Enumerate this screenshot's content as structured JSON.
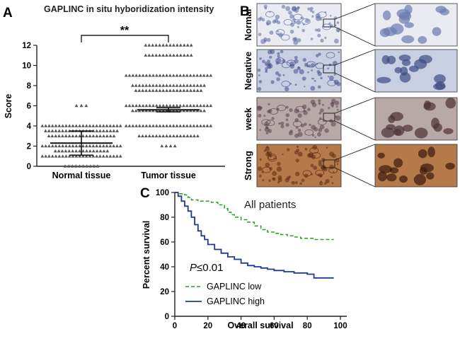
{
  "panels": {
    "a": {
      "label": "A"
    },
    "b": {
      "label": "B"
    },
    "c": {
      "label": "C"
    }
  },
  "colors": {
    "axis": "#222222",
    "marker": "#555555",
    "low": "#2ca02c",
    "high": "#1f3b8f",
    "tissue_bg": "#d9dce8"
  },
  "micrographs": {
    "rows": [
      {
        "label": "Normal",
        "stain": "#e9eaf2",
        "cell": "#5a6aa0",
        "zoom_cell": "#6b7bb0"
      },
      {
        "label": "Negative",
        "stain": "#c8cfe3",
        "cell": "#3f4f8c",
        "zoom_cell": "#3d4b85"
      },
      {
        "label": "week",
        "stain": "#b9a8a8",
        "cell": "#5a3f4f",
        "zoom_cell": "#4d3038"
      },
      {
        "label": "Strong",
        "stain": "#b57a4a",
        "cell": "#5a2a12",
        "zoom_cell": "#3a1a0e"
      }
    ]
  },
  "chart_data": [
    {
      "type": "scatter",
      "title": "GAPLINC in situ hyboridization intensity",
      "xlabel": "",
      "ylabel": "Score",
      "categories": [
        "Normal tissue",
        "Tumor tissue"
      ],
      "ylim": [
        0,
        12
      ],
      "yticks": [
        0,
        2,
        4,
        6,
        8,
        10,
        12
      ],
      "significance": "**",
      "series": [
        {
          "name": "Normal tissue",
          "points": [
            {
              "y": 6,
              "n": 3
            },
            {
              "y": 4,
              "n": 24
            },
            {
              "y": 3.5,
              "n": 22
            },
            {
              "y": 3,
              "n": 20
            },
            {
              "y": 2,
              "n": 24
            },
            {
              "y": 1.5,
              "n": 16
            },
            {
              "y": 1,
              "n": 24
            },
            {
              "y": 0,
              "n": 10
            }
          ],
          "mean": 2.3,
          "sd_low": 1.1,
          "sd_high": 3.5
        },
        {
          "name": "Tumor tissue",
          "points": [
            {
              "y": 12,
              "n": 14
            },
            {
              "y": 11,
              "n": 14
            },
            {
              "y": 9,
              "n": 26
            },
            {
              "y": 8,
              "n": 22
            },
            {
              "y": 7.5,
              "n": 20
            },
            {
              "y": 6,
              "n": 26
            },
            {
              "y": 5.5,
              "n": 22
            },
            {
              "y": 4,
              "n": 26
            },
            {
              "y": 3,
              "n": 18
            },
            {
              "y": 2,
              "n": 4
            }
          ],
          "mean": 5.6,
          "sd_low": 5.4,
          "sd_high": 5.8
        }
      ]
    },
    {
      "type": "line",
      "title": "All patients",
      "xlabel": "Overall survival",
      "ylabel": "Percent survival",
      "xlim": [
        0,
        100
      ],
      "ylim": [
        0,
        100
      ],
      "xticks": [
        0,
        20,
        40,
        60,
        80,
        100
      ],
      "yticks": [
        0,
        20,
        40,
        60,
        80,
        100
      ],
      "annotation_p": "P",
      "annotation_rest": "≤0.01",
      "series": [
        {
          "name": "GAPLINC low",
          "style": "dashed",
          "x": [
            0,
            3,
            6,
            8,
            10,
            14,
            18,
            22,
            26,
            30,
            32,
            34,
            36,
            40,
            44,
            48,
            52,
            56,
            60,
            64,
            68,
            72,
            76,
            80,
            84,
            96
          ],
          "y": [
            100,
            99,
            98,
            96,
            94,
            93,
            93,
            92,
            90,
            87,
            84,
            82,
            80,
            78,
            76,
            73,
            70,
            68,
            67,
            66,
            65,
            64,
            63,
            63,
            62,
            62
          ]
        },
        {
          "name": "GAPLINC high",
          "style": "solid",
          "x": [
            0,
            2,
            4,
            6,
            8,
            10,
            12,
            14,
            16,
            18,
            20,
            24,
            28,
            32,
            36,
            40,
            44,
            48,
            52,
            56,
            60,
            66,
            72,
            80,
            84,
            96
          ],
          "y": [
            100,
            97,
            93,
            89,
            85,
            80,
            74,
            69,
            65,
            62,
            58,
            54,
            51,
            48,
            46,
            43,
            41,
            40,
            39,
            38,
            37,
            36,
            35,
            34,
            31,
            31
          ]
        }
      ]
    }
  ]
}
